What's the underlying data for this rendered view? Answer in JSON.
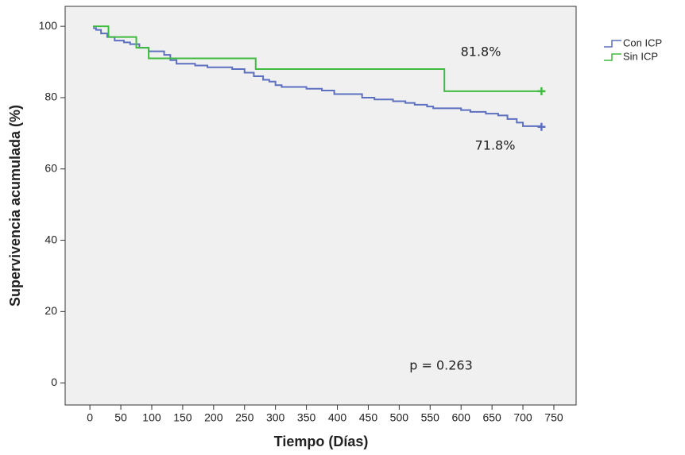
{
  "chart_data": {
    "type": "step",
    "x_label": "Tiempo (Días)",
    "y_label": "Supervivencia acumulada (%)",
    "xlim": [
      -40,
      786
    ],
    "ylim": [
      -6.2,
      105.6
    ],
    "xticks": [
      0,
      50,
      100,
      150,
      200,
      250,
      300,
      350,
      400,
      450,
      500,
      550,
      600,
      650,
      700,
      750
    ],
    "yticks": [
      0,
      20,
      40,
      60,
      80,
      100
    ],
    "legend": "outside-right-top",
    "grid": false,
    "series": [
      {
        "name": "Con ICP",
        "color": "#5d6fc0",
        "x": [
          5,
          10,
          18,
          28,
          40,
          55,
          65,
          80,
          95,
          120,
          130,
          140,
          170,
          190,
          230,
          250,
          265,
          280,
          290,
          300,
          310,
          350,
          375,
          395,
          440,
          460,
          490,
          510,
          525,
          545,
          555,
          600,
          615,
          640,
          660,
          675,
          690,
          700,
          730
        ],
        "values": [
          99.5,
          99,
          98,
          97,
          96,
          95.5,
          95,
          94,
          93,
          92,
          90.5,
          89.5,
          89,
          88.5,
          88,
          87,
          86,
          85,
          84.5,
          83.5,
          83,
          82.5,
          82,
          81,
          80,
          79.5,
          79,
          78.5,
          78,
          77.5,
          77,
          76.5,
          76,
          75.5,
          75,
          74,
          73,
          72,
          71.8
        ]
      },
      {
        "name": "Sin ICP",
        "color": "#3fbb3f",
        "x": [
          5,
          30,
          75,
          95,
          268,
          573,
          730
        ],
        "values": [
          100,
          97,
          94,
          91,
          88,
          81.8,
          81.8
        ]
      }
    ],
    "annotations": [
      "81.8%",
      "71.8%",
      "p = 0.263"
    ]
  }
}
